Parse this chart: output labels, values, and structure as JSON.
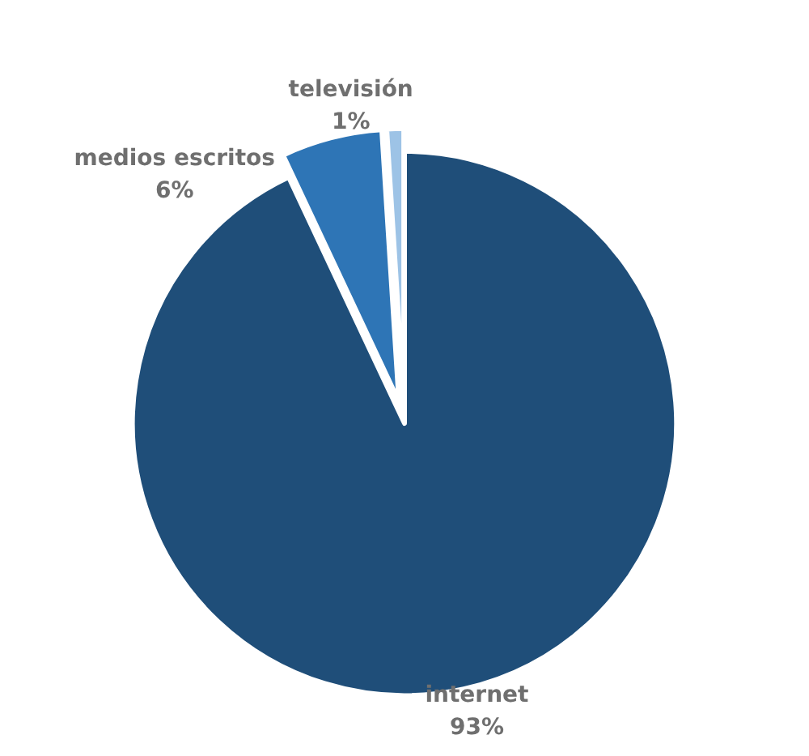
{
  "chart_data": {
    "type": "pie",
    "categories": [
      "internet",
      "medios escritos",
      "televisión"
    ],
    "values": [
      93,
      6,
      1
    ],
    "colors": [
      "#1f4e79",
      "#2e75b6",
      "#9dc3e6"
    ],
    "value_labels": [
      "93%",
      "6%",
      "1%"
    ],
    "legend": false
  }
}
